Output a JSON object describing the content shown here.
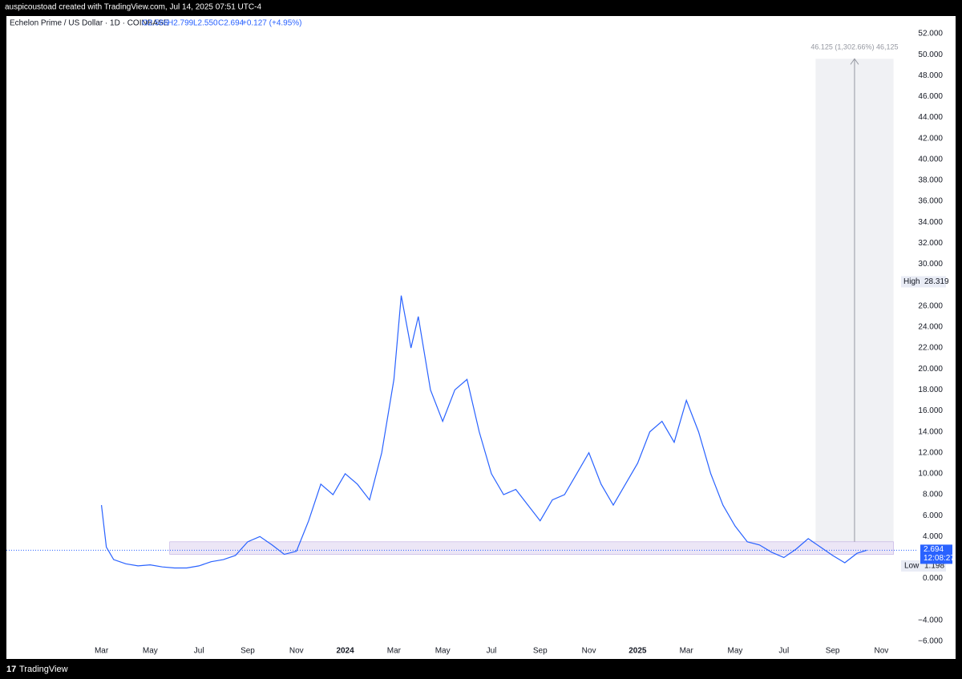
{
  "header": {
    "credit": "auspicoustoad created with TradingView.com, Jul 14, 2025 07:51 UTC-4",
    "symbol": "Echelon Prime / US Dollar · 1D · COINBASE",
    "open": "O2.566",
    "high": "H2.799",
    "low": "L2.550",
    "close": "C2.694",
    "change": "+0.127 (+4.95%)"
  },
  "footer": {
    "brand": "TradingView"
  },
  "chart_data": {
    "type": "line",
    "x": [
      0,
      0.2,
      0.5,
      1,
      1.5,
      2,
      2.5,
      3,
      3.5,
      4,
      4.5,
      5,
      5.5,
      6,
      6.5,
      7,
      7.5,
      8,
      8.5,
      9,
      9.5,
      10,
      10.5,
      11,
      11.5,
      12,
      12.3,
      12.7,
      13,
      13.5,
      14,
      14.5,
      15,
      15.5,
      16,
      16.5,
      17,
      17.5,
      18,
      18.5,
      19,
      19.5,
      20,
      20.5,
      21,
      21.5,
      22,
      22.5,
      23,
      23.5,
      24,
      24.5,
      25,
      25.5,
      26,
      26.5,
      27,
      27.5,
      28,
      28.5,
      29,
      29.5,
      30,
      30.5,
      31,
      31.4
    ],
    "series": [
      {
        "name": "Echelon Prime / US Dollar",
        "color": "#2962ff",
        "values": [
          7,
          3,
          1.8,
          1.4,
          1.2,
          1.3,
          1.1,
          1,
          1,
          1.2,
          1.6,
          1.8,
          2.2,
          3.5,
          4,
          3.2,
          2.3,
          2.6,
          5.5,
          9,
          8,
          10,
          9,
          7.5,
          12,
          19,
          27,
          22,
          25,
          18,
          15,
          18,
          19,
          14,
          10,
          8,
          8.5,
          7,
          5.5,
          7.5,
          8,
          10,
          12,
          9,
          7,
          9,
          11,
          14,
          15,
          13,
          17,
          14,
          10,
          7,
          5,
          3.5,
          3.2,
          2.5,
          2,
          2.8,
          3.8,
          3,
          2.2,
          1.5,
          2.4,
          2.694
        ]
      }
    ],
    "xlim": [
      -3.9,
      33.5
    ],
    "xticks": [
      {
        "value": 0,
        "label": "Mar"
      },
      {
        "value": 2,
        "label": "May"
      },
      {
        "value": 4,
        "label": "Jul"
      },
      {
        "value": 6,
        "label": "Sep"
      },
      {
        "value": 8,
        "label": "Nov"
      },
      {
        "value": 10,
        "label": "2024"
      },
      {
        "value": 12,
        "label": "Mar"
      },
      {
        "value": 14,
        "label": "May"
      },
      {
        "value": 16,
        "label": "Jul"
      },
      {
        "value": 18,
        "label": "Sep"
      },
      {
        "value": 20,
        "label": "Nov"
      },
      {
        "value": 22,
        "label": "2025"
      },
      {
        "value": 24,
        "label": "Mar"
      },
      {
        "value": 26,
        "label": "May"
      },
      {
        "value": 28,
        "label": "Jul"
      },
      {
        "value": 30,
        "label": "Sep"
      },
      {
        "value": 32,
        "label": "Nov"
      }
    ],
    "ylim": [
      -6,
      52
    ],
    "yticks": [
      {
        "value": 52,
        "label": "52.000"
      },
      {
        "value": 50,
        "label": "50.000"
      },
      {
        "value": 48,
        "label": "48.000"
      },
      {
        "value": 46,
        "label": "46.000"
      },
      {
        "value": 44,
        "label": "44.000"
      },
      {
        "value": 42,
        "label": "42.000"
      },
      {
        "value": 40,
        "label": "40.000"
      },
      {
        "value": 38,
        "label": "38.000"
      },
      {
        "value": 36,
        "label": "36.000"
      },
      {
        "value": 34,
        "label": "34.000"
      },
      {
        "value": 32,
        "label": "32.000"
      },
      {
        "value": 30,
        "label": "30.000"
      },
      {
        "value": 26,
        "label": "26.000"
      },
      {
        "value": 24,
        "label": "24.000"
      },
      {
        "value": 22,
        "label": "22.000"
      },
      {
        "value": 20,
        "label": "20.000"
      },
      {
        "value": 18,
        "label": "18.000"
      },
      {
        "value": 16,
        "label": "16.000"
      },
      {
        "value": 14,
        "label": "14.000"
      },
      {
        "value": 12,
        "label": "12.000"
      },
      {
        "value": 10,
        "label": "10.000"
      },
      {
        "value": 8,
        "label": "8.000"
      },
      {
        "value": 6,
        "label": "6.000"
      },
      {
        "value": 4,
        "label": "4.000"
      },
      {
        "value": 0,
        "label": "0.000"
      },
      {
        "value": -4,
        "label": "−4.000"
      },
      {
        "value": -6,
        "label": "−6.000"
      }
    ],
    "high": {
      "label": "High",
      "value": 28.319
    },
    "low": {
      "label": "Low",
      "value": 1.198
    },
    "last": {
      "value": 2.694,
      "countdown": "12:08:27",
      "color": "#2962ff"
    },
    "measure": {
      "label": "46.125 (1,302.66%) 46,125",
      "x": [
        29.3,
        32.5
      ],
      "y": [
        3.5,
        49.6
      ]
    },
    "zone": {
      "x": [
        2.8,
        32.5
      ],
      "y": [
        2.3,
        3.5
      ]
    }
  }
}
